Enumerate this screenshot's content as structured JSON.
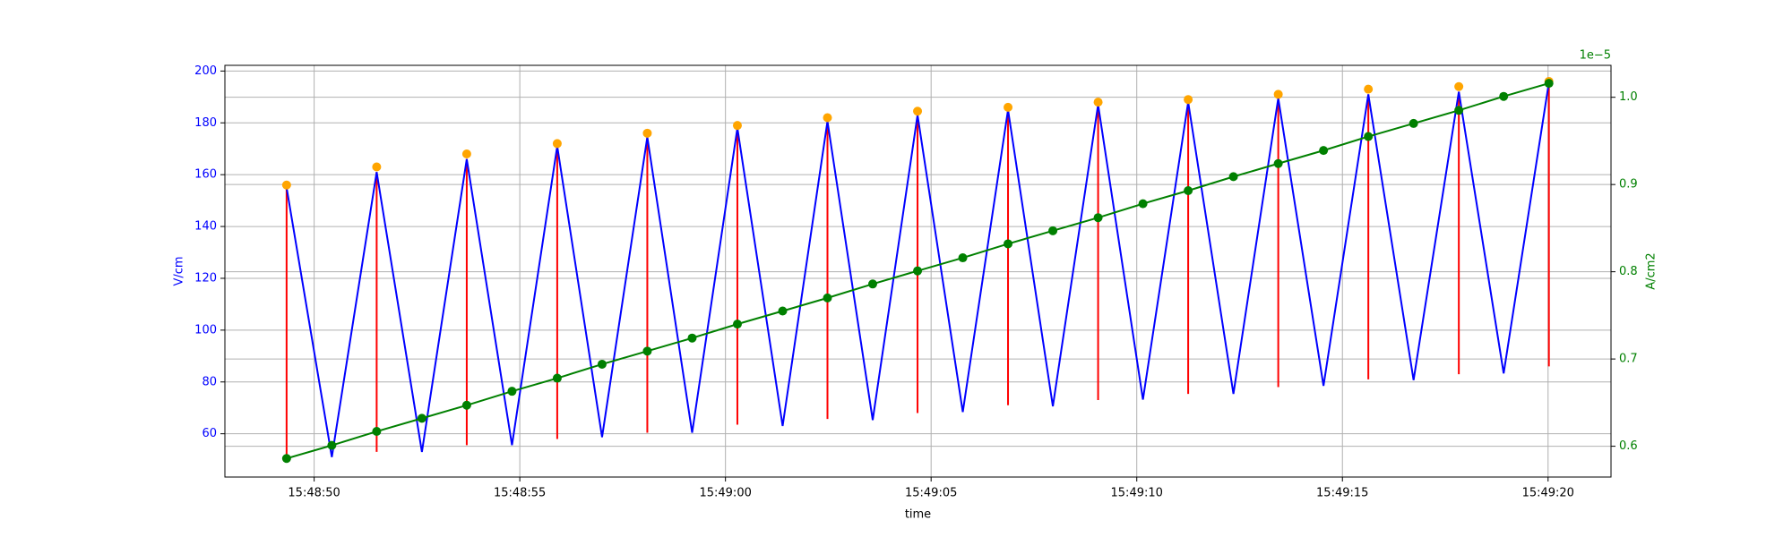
{
  "chart_data": {
    "type": "line",
    "xlabel": "time",
    "ylabel": "V/cm",
    "y2label": "A/cm2",
    "y2_offset_label": "1e−5",
    "ycolor": "blue",
    "y2color": "green",
    "grid": true,
    "xlim": [
      "15:48:47.83",
      "15:49:21.53"
    ],
    "xticks": [
      "15:48:50",
      "15:48:55",
      "15:49:00",
      "15:49:05",
      "15:49:10",
      "15:49:15",
      "15:49:20"
    ],
    "ylim": [
      43.3,
      202.2
    ],
    "yticks": [
      60,
      80,
      100,
      120,
      140,
      160,
      180,
      200
    ],
    "y2lim": [
      0.5647,
      1.0366
    ],
    "y2ticks": [
      0.6,
      0.7,
      0.8,
      0.9,
      {
        "value": 1,
        "label": "1.0"
      }
    ],
    "series": [
      {
        "type": "vlines",
        "color": "red",
        "x": [
          "15:48:49.33",
          "15:48:51.52",
          "15:48:53.71",
          "15:48:55.91",
          "15:48:58.10",
          "15:49:00.29",
          "15:49:02.48",
          "15:49:04.67",
          "15:49:06.87",
          "15:49:09.06",
          "15:49:11.25",
          "15:49:13.44",
          "15:49:15.63",
          "15:49:17.83",
          "15:49:20.02"
        ],
        "low": [
          52,
          53,
          55.6,
          58,
          60.4,
          63.5,
          65.7,
          68,
          71,
          73,
          75.4,
          78,
          81,
          83,
          86
        ],
        "values": [
          155,
          161,
          166,
          171,
          174.5,
          178,
          180.6,
          183,
          185,
          187,
          188,
          189.5,
          191,
          192,
          195.6
        ]
      },
      {
        "type": "line",
        "color": "blue",
        "x": [
          "15:48:49.33",
          "15:48:50.43",
          "15:48:51.52",
          "15:48:52.62",
          "15:48:53.71",
          "15:48:54.81",
          "15:48:55.91",
          "15:48:57.00",
          "15:48:58.10",
          "15:48:59.19",
          "15:49:00.29",
          "15:49:01.39",
          "15:49:02.48",
          "15:49:03.58",
          "15:49:04.67",
          "15:49:05.77",
          "15:49:06.87",
          "15:49:07.96",
          "15:49:09.06",
          "15:49:10.15",
          "15:49:11.25",
          "15:49:12.35",
          "15:49:13.44",
          "15:49:14.54",
          "15:49:15.63",
          "15:49:16.73",
          "15:49:17.83",
          "15:49:18.92",
          "15:49:20.02"
        ],
        "values": [
          155,
          51,
          161,
          53,
          166,
          55.6,
          171,
          58.7,
          174.5,
          60.4,
          178,
          63,
          180.6,
          65.3,
          183,
          68.4,
          185,
          70.6,
          187,
          73.2,
          188,
          75.4,
          189.5,
          78.5,
          191,
          80.7,
          192,
          83.3,
          195.6
        ]
      },
      {
        "type": "scatter",
        "color": "orange",
        "x": [
          "15:48:49.33",
          "15:48:51.52",
          "15:48:53.71",
          "15:48:55.91",
          "15:48:58.10",
          "15:49:00.29",
          "15:49:02.48",
          "15:49:04.67",
          "15:49:06.87",
          "15:49:09.06",
          "15:49:11.25",
          "15:49:13.44",
          "15:49:15.63",
          "15:49:17.83",
          "15:49:20.02"
        ],
        "values": [
          156,
          163,
          168,
          172,
          176,
          179,
          182,
          184.5,
          186,
          188,
          189,
          191,
          193,
          194,
          196
        ]
      },
      {
        "type": "line",
        "marker": true,
        "color": "green",
        "axis": "y2",
        "x": [
          "15:48:49.33",
          "15:48:50.43",
          "15:48:51.52",
          "15:48:52.62",
          "15:48:53.71",
          "15:48:54.81",
          "15:48:55.91",
          "15:48:57.00",
          "15:48:58.10",
          "15:48:59.19",
          "15:49:00.29",
          "15:49:01.39",
          "15:49:02.48",
          "15:49:03.58",
          "15:49:04.67",
          "15:49:05.77",
          "15:49:06.87",
          "15:49:07.96",
          "15:49:09.06",
          "15:49:10.15",
          "15:49:11.25",
          "15:49:12.35",
          "15:49:13.44",
          "15:49:14.54",
          "15:49:15.63",
          "15:49:16.73",
          "15:49:17.83",
          "15:49:18.92",
          "15:49:20.02"
        ],
        "values": [
          0.586,
          0.601,
          0.617,
          0.632,
          0.647,
          0.663,
          0.678,
          0.694,
          0.709,
          0.724,
          0.74,
          0.755,
          0.77,
          0.786,
          0.801,
          0.816,
          0.832,
          0.847,
          0.862,
          0.878,
          0.893,
          0.909,
          0.924,
          0.939,
          0.955,
          0.97,
          0.985,
          1.001,
          1.016
        ]
      }
    ]
  }
}
